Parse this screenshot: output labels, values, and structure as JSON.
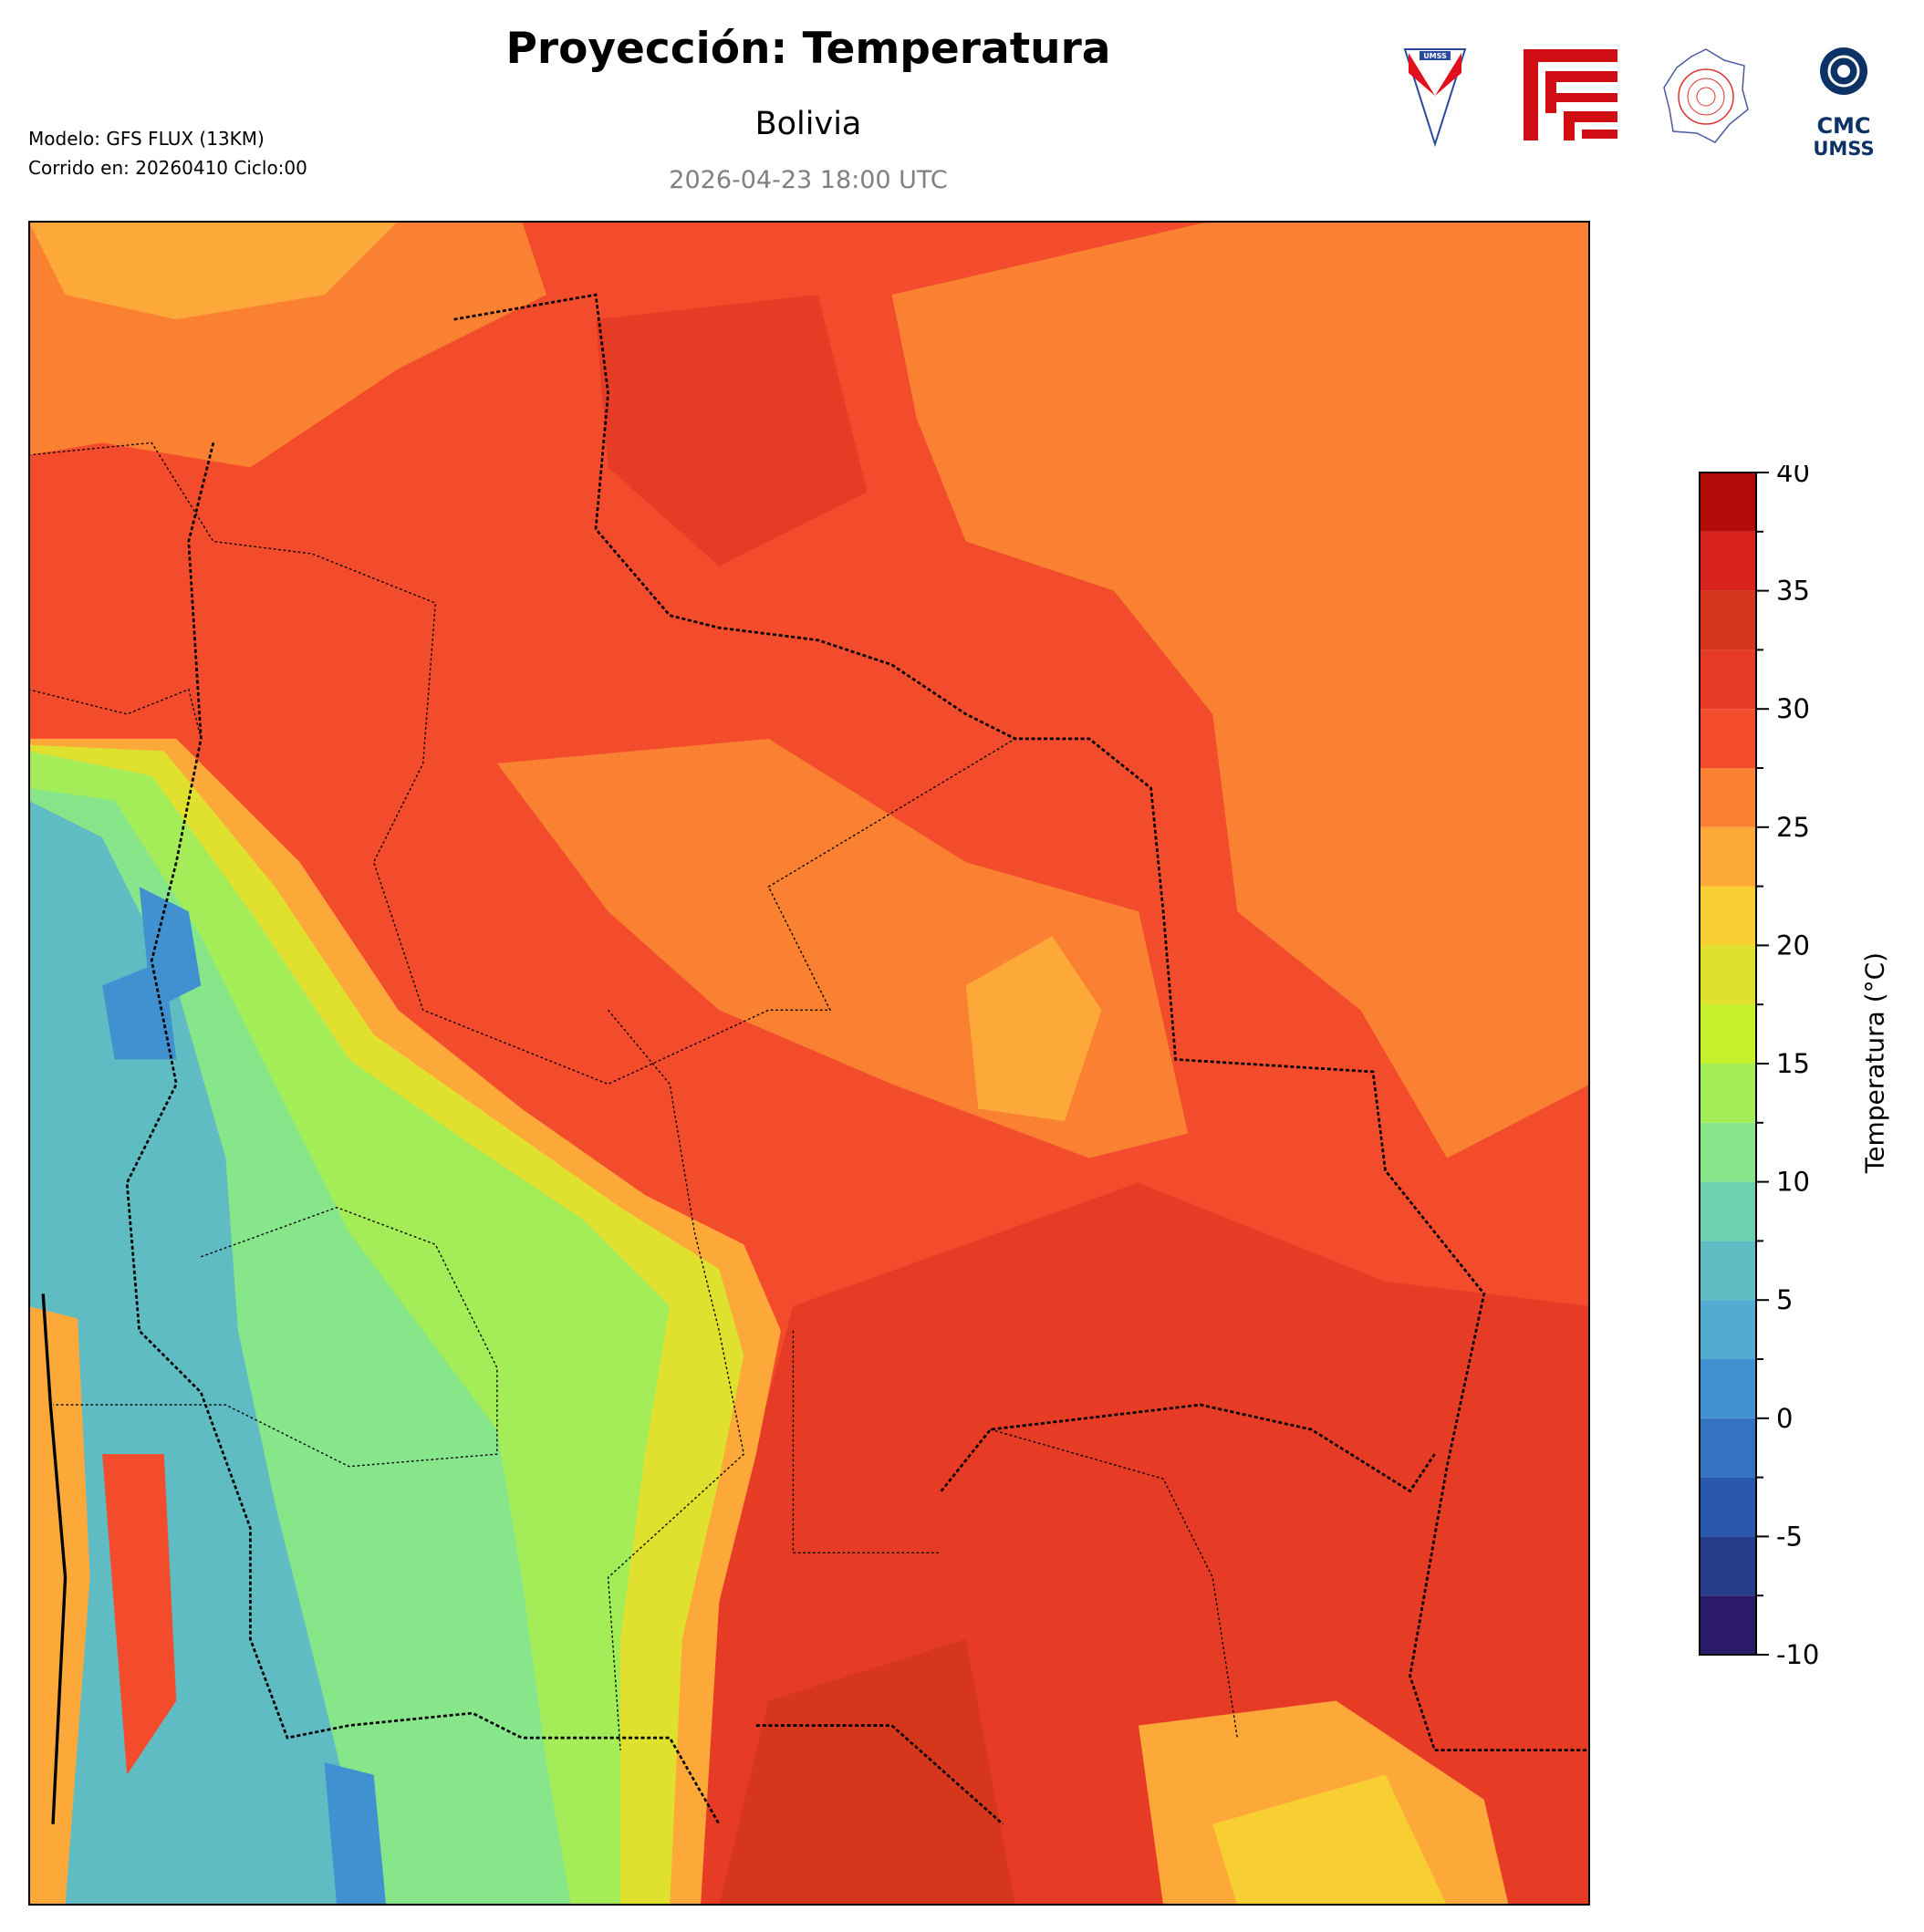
{
  "header": {
    "title": "Proyección: Temperatura",
    "subtitle": "Bolivia",
    "valid_time": "2026-04-23 18:00 UTC",
    "model": "Modelo: GFS FLUX (13KM)",
    "run": "Corrido en: 20260410 Ciclo:00"
  },
  "logos": {
    "umss": "UMSS",
    "cmc_line1": "CMC",
    "cmc_line2": "UMSS"
  },
  "chart_data": {
    "type": "heatmap",
    "title": "Proyección: Temperatura",
    "subtitle": "Bolivia",
    "region": "Bolivia",
    "variable": "Temperatura",
    "colorbar": {
      "label": "Temperatura (°C)",
      "range": [
        -10,
        40
      ],
      "step": 2.5,
      "ticks": [
        -10,
        -5,
        0,
        5,
        10,
        15,
        20,
        25,
        30,
        35,
        40
      ],
      "tick_labels": [
        "-10",
        "-5",
        "0",
        "5",
        "10",
        "15",
        "20",
        "25",
        "30",
        "35",
        "40"
      ],
      "colors": [
        "#2a1a68",
        "#263d8c",
        "#2a58ac",
        "#3373c0",
        "#4191d0",
        "#52abd0",
        "#5fbcc2",
        "#6dd1b0",
        "#88e68a",
        "#a4ec58",
        "#c6ef2c",
        "#e0e12e",
        "#f8cf32",
        "#fca93a",
        "#fb8132",
        "#f24c2c",
        "#e63c26",
        "#d6361c",
        "#d8231c",
        "#b50a0a"
      ]
    },
    "summary": {
      "lowlands_north_east": "27.5-35 °C",
      "altiplano_southwest": "2.5-17.5 °C",
      "southeast_chaco": "30-35 °C"
    }
  }
}
